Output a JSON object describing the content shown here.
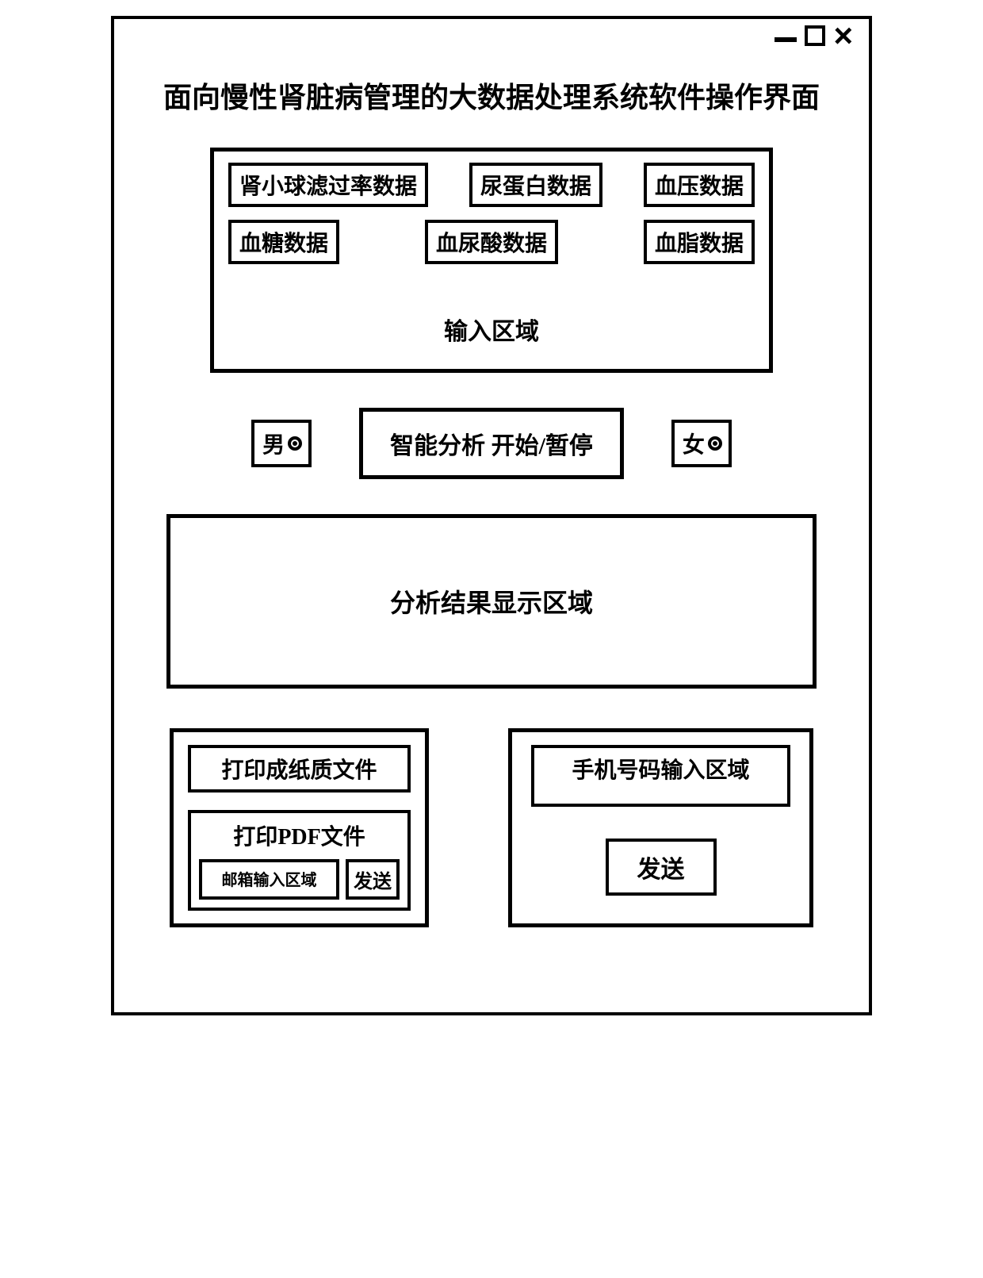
{
  "window": {
    "title": "面向慢性肾脏病管理的大数据处理系统软件操作界面"
  },
  "input_area": {
    "row1": [
      "肾小球滤过率数据",
      "尿蛋白数据",
      "血压数据"
    ],
    "row2": [
      "血糖数据",
      "血尿酸数据",
      "血脂数据"
    ],
    "label": "输入区域"
  },
  "gender": {
    "male": "男",
    "female": "女"
  },
  "analyze": {
    "label": "智能分析 开始/暂停"
  },
  "result": {
    "label": "分析结果显示区域"
  },
  "print": {
    "paper": "打印成纸质文件",
    "pdf_label": "打印PDF文件",
    "email_placeholder": "邮箱输入区域",
    "send": "发送"
  },
  "phone": {
    "placeholder": "手机号码输入区域",
    "send": "发送"
  },
  "style": {
    "border_color": "#000000",
    "background": "#ffffff",
    "border_width_outer": 5,
    "border_width_inner": 4,
    "title_fontsize": 36,
    "label_fontsize": 30,
    "button_fontsize": 28
  }
}
